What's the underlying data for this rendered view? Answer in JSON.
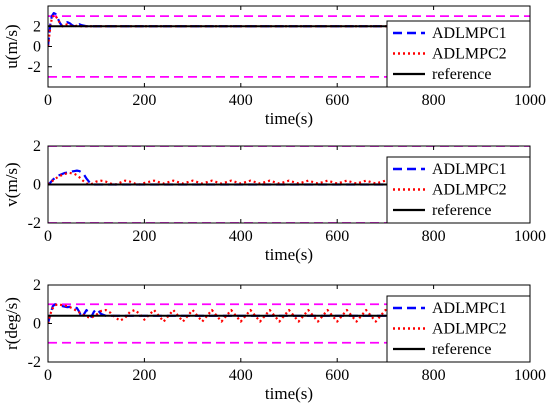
{
  "chart_data": [
    {
      "type": "line",
      "xlabel": "time(s)",
      "ylabel": "u(m/s)",
      "xlim": [
        0,
        1000
      ],
      "ylim": [
        -4,
        4
      ],
      "xticks": [
        "0",
        "200",
        "400",
        "600",
        "800",
        "1000"
      ],
      "yticks": [
        "-2",
        "0",
        "2"
      ],
      "grid": false,
      "legend_placement": "right",
      "series": [
        {
          "name": "ADLMPC1",
          "color": "#0000ff",
          "style": "dashed",
          "x": [
            0,
            2,
            5,
            8,
            12,
            16,
            20,
            25,
            30,
            35,
            40,
            45,
            50,
            55,
            60,
            65,
            70,
            80,
            90,
            100,
            150,
            300,
            500,
            700,
            1000
          ],
          "y": [
            0,
            1.0,
            2.3,
            3.0,
            3.3,
            3.2,
            2.8,
            2.3,
            2.0,
            2.2,
            2.4,
            2.3,
            2.1,
            2.0,
            2.1,
            2.2,
            2.1,
            2.0,
            2.0,
            2.0,
            2.0,
            2.0,
            2.0,
            2.0,
            2.0
          ]
        },
        {
          "name": "ADLMPC2",
          "color": "#ff0000",
          "style": "dotted",
          "x": [
            0,
            2,
            5,
            8,
            12,
            16,
            20,
            25,
            30,
            35,
            40,
            45,
            50,
            55,
            60,
            70,
            80,
            90,
            100,
            150,
            300,
            500,
            700,
            1000
          ],
          "y": [
            0,
            0.8,
            2.0,
            2.8,
            3.1,
            3.0,
            2.7,
            2.3,
            2.0,
            2.1,
            2.2,
            2.1,
            2.0,
            2.0,
            2.05,
            2.0,
            2.0,
            2.0,
            2.0,
            2.0,
            2.0,
            2.0,
            2.0,
            2.0
          ]
        },
        {
          "name": "reference",
          "color": "#000000",
          "style": "solid",
          "x": [
            0,
            1000
          ],
          "y": [
            2,
            2
          ]
        }
      ],
      "bounds": {
        "color": "#ff00ff",
        "values": [
          3,
          -3
        ]
      }
    },
    {
      "type": "line",
      "xlabel": "time(s)",
      "ylabel": "v(m/s)",
      "xlim": [
        0,
        1000
      ],
      "ylim": [
        -2,
        2
      ],
      "xticks": [
        "0",
        "200",
        "400",
        "600",
        "800",
        "1000"
      ],
      "yticks": [
        "-2",
        "0",
        "2"
      ],
      "grid": false,
      "legend_placement": "right",
      "series": [
        {
          "name": "ADLMPC1",
          "color": "#0000ff",
          "style": "dashed",
          "x": [
            0,
            5,
            10,
            15,
            20,
            25,
            30,
            35,
            40,
            45,
            50,
            55,
            60,
            65,
            70,
            75,
            80,
            85,
            90,
            95,
            100,
            110,
            150,
            300,
            500,
            700,
            1000
          ],
          "y": [
            0,
            0.1,
            0.25,
            0.35,
            0.45,
            0.5,
            0.55,
            0.6,
            0.62,
            0.65,
            0.68,
            0.7,
            0.72,
            0.7,
            0.62,
            0.5,
            0.3,
            0.15,
            0.05,
            0.0,
            0.0,
            0.0,
            0.0,
            0.0,
            0.0,
            0.0,
            0.0
          ]
        },
        {
          "name": "ADLMPC2",
          "color": "#ff0000",
          "style": "dotted",
          "x": [
            0,
            5,
            10,
            15,
            20,
            25,
            30,
            35,
            40,
            45,
            50,
            55,
            60,
            65,
            70,
            80,
            90,
            100,
            110,
            120,
            130,
            140,
            150,
            160,
            170,
            180,
            190,
            200,
            220,
            240,
            260,
            280,
            300,
            320,
            340,
            360,
            380,
            400,
            420,
            440,
            460,
            480,
            500,
            520,
            540,
            560,
            580,
            600,
            620,
            640,
            660,
            680,
            700,
            720,
            740,
            760,
            780,
            800,
            820,
            840,
            860,
            880,
            900,
            920,
            940,
            960,
            980,
            1000
          ],
          "y": [
            0,
            0.1,
            0.2,
            0.3,
            0.38,
            0.45,
            0.5,
            0.55,
            0.58,
            0.6,
            0.58,
            0.55,
            0.48,
            0.38,
            0.25,
            0.05,
            0.02,
            0.15,
            0.2,
            0.15,
            0.05,
            0.0,
            0.1,
            0.2,
            0.15,
            0.05,
            0.0,
            0.08,
            0.2,
            0.05,
            0.2,
            0.05,
            0.2,
            0.05,
            0.2,
            0.05,
            0.2,
            0.05,
            0.2,
            0.05,
            0.2,
            0.05,
            0.2,
            0.05,
            0.2,
            0.05,
            0.2,
            0.05,
            0.2,
            0.05,
            0.2,
            0.05,
            0.2,
            0.05,
            0.2,
            0.05,
            0.2,
            0.05,
            0.2,
            0.05,
            0.2,
            0.05,
            0.2,
            0.05,
            0.2,
            0.05,
            0.2,
            0.05
          ]
        },
        {
          "name": "reference",
          "color": "#000000",
          "style": "solid",
          "x": [
            0,
            1000
          ],
          "y": [
            0,
            0
          ]
        }
      ],
      "bounds": {
        "color": "#ff00ff",
        "values": [
          2,
          -2
        ]
      }
    },
    {
      "type": "line",
      "xlabel": "time(s)",
      "ylabel": "r(deg/s)",
      "xlim": [
        0,
        1000
      ],
      "ylim": [
        -2,
        2
      ],
      "xticks": [
        "0",
        "200",
        "400",
        "600",
        "800",
        "1000"
      ],
      "yticks": [
        "-2",
        "0",
        "2"
      ],
      "grid": false,
      "legend_placement": "right",
      "series": [
        {
          "name": "ADLMPC1",
          "color": "#0000ff",
          "style": "dashed",
          "x": [
            0,
            5,
            10,
            15,
            20,
            30,
            40,
            50,
            60,
            65,
            70,
            75,
            80,
            85,
            90,
            95,
            100,
            105,
            110,
            115,
            120,
            150,
            300,
            500,
            700,
            1000
          ],
          "y": [
            0,
            0.5,
            0.9,
            1.0,
            0.95,
            0.9,
            0.85,
            0.88,
            0.8,
            0.6,
            0.3,
            0.5,
            0.7,
            0.45,
            0.35,
            0.6,
            0.75,
            0.65,
            0.5,
            0.45,
            0.4,
            0.4,
            0.4,
            0.4,
            0.4,
            0.4
          ]
        },
        {
          "name": "ADLMPC2",
          "color": "#ff0000",
          "style": "dotted",
          "x": [
            0,
            5,
            10,
            15,
            20,
            30,
            40,
            50,
            60,
            70,
            80,
            90,
            100,
            110,
            120,
            130,
            140,
            150,
            160,
            170,
            180,
            190,
            200,
            220,
            240,
            260,
            280,
            300,
            320,
            340,
            360,
            380,
            400,
            420,
            440,
            460,
            480,
            500,
            520,
            540,
            560,
            580,
            600,
            620,
            640,
            660,
            680,
            700,
            720,
            740,
            760,
            780,
            800,
            820,
            840,
            860,
            880,
            900,
            920,
            940,
            960,
            980,
            990,
            1000
          ],
          "y": [
            0,
            0.5,
            0.8,
            0.95,
            1.0,
            0.95,
            0.9,
            0.8,
            0.65,
            0.5,
            0.35,
            0.3,
            0.45,
            0.65,
            0.7,
            0.55,
            0.3,
            0.15,
            0.3,
            0.6,
            0.7,
            0.5,
            0.2,
            0.7,
            0.1,
            0.7,
            0.1,
            0.7,
            0.1,
            0.7,
            0.1,
            0.7,
            0.1,
            0.7,
            0.1,
            0.7,
            0.1,
            0.7,
            0.1,
            0.7,
            0.1,
            0.7,
            0.1,
            0.7,
            0.1,
            0.7,
            0.1,
            0.7,
            0.1,
            0.7,
            0.1,
            0.7,
            0.1,
            0.7,
            0.1,
            0.7,
            0.1,
            0.7,
            0.1,
            0.7,
            0.1,
            0.7,
            0.3,
            0.1
          ]
        },
        {
          "name": "reference",
          "color": "#000000",
          "style": "solid",
          "x": [
            0,
            1000
          ],
          "y": [
            0.4,
            0.4
          ]
        }
      ],
      "bounds": {
        "color": "#ff00ff",
        "values": [
          1,
          -1
        ]
      }
    }
  ]
}
